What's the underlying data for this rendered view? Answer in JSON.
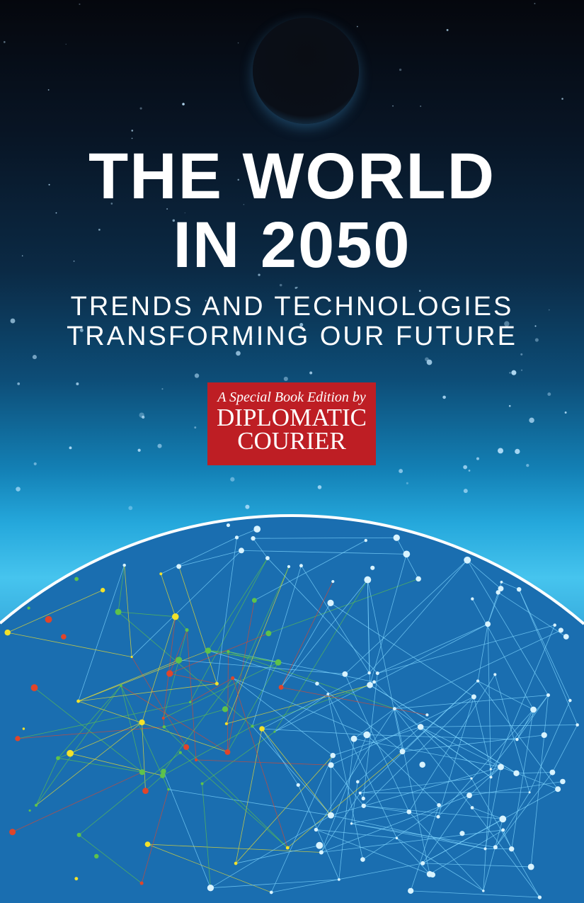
{
  "cover": {
    "title_line1": "THE WORLD",
    "title_line2": "IN 2050",
    "subtitle_line1": "TRENDS AND TECHNOLOGIES",
    "subtitle_line2": "TRANSFORMING OUR FUTURE",
    "badge": {
      "tagline": "A Special Book Edition by",
      "name_line1": "DIPLOMATIC",
      "name_line2": "COURIER",
      "color": "#be1e24"
    }
  },
  "colors": {
    "globe_outline": "#ffffff",
    "network_blue": "#7fd6ff",
    "network_green": "#5ec24a",
    "network_yellow": "#f2e12b",
    "network_red": "#e0452a"
  }
}
